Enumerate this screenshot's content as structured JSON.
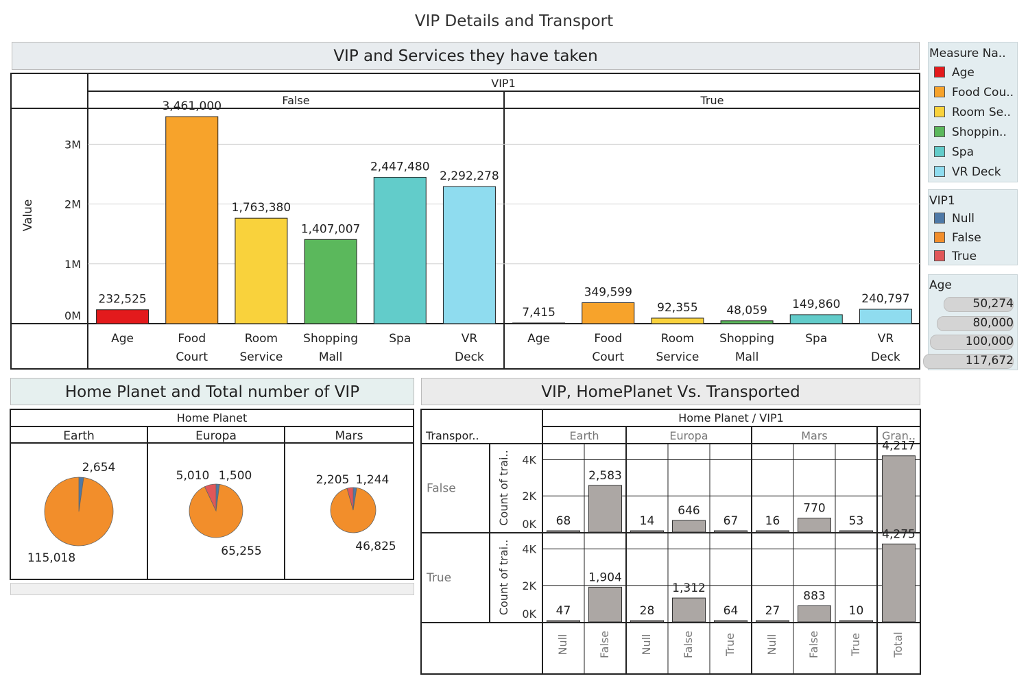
{
  "dashboard": {
    "title": "VIP Details and Transport"
  },
  "services_chart": {
    "title": "VIP and Services they have taken",
    "column_header": "VIP1",
    "y_axis_label": "Value",
    "y_ticks": [
      "0M",
      "1M",
      "2M",
      "3M"
    ]
  },
  "planet_chart": {
    "title": "Home Planet and Total number of VIP",
    "column_header": "Home Planet"
  },
  "transport_chart": {
    "title": "VIP, HomePlanet Vs. Transported",
    "column_header": "Home Planet  /  VIP1",
    "row_header": "Transpor..",
    "row_axis_label": "Count of trai..",
    "y_ticks": [
      "0K",
      "2K",
      "4K"
    ]
  },
  "legends": {
    "measure": {
      "title": "Measure Na..",
      "items": [
        {
          "label": "Age",
          "color": "#e31a1c"
        },
        {
          "label": "Food Cou..",
          "color": "#f7a32b"
        },
        {
          "label": "Room Se..",
          "color": "#f9d23c"
        },
        {
          "label": "Shoppin..",
          "color": "#5bb85c"
        },
        {
          "label": "Spa",
          "color": "#62ccca"
        },
        {
          "label": "VR Deck",
          "color": "#8fdcef"
        }
      ]
    },
    "vip": {
      "title": "VIP1",
      "items": [
        {
          "label": "Null",
          "color": "#4e79a7"
        },
        {
          "label": "False",
          "color": "#f28e2b"
        },
        {
          "label": "True",
          "color": "#e15759"
        }
      ]
    },
    "age": {
      "title": "Age",
      "items": [
        {
          "label": "50,274"
        },
        {
          "label": "80,000"
        },
        {
          "label": "100,000"
        },
        {
          "label": "117,672"
        }
      ]
    }
  },
  "chart_data": [
    {
      "type": "bar",
      "title": "VIP and Services they have taken",
      "facet": "VIP1",
      "ylabel": "Value",
      "ylim": [
        0,
        3600000
      ],
      "panels": [
        {
          "label": "False",
          "bars": [
            {
              "category": "Age",
              "value": 232525,
              "label": "232,525"
            },
            {
              "category": "Food Court",
              "value": 3461000,
              "label": "3,461,000"
            },
            {
              "category": "Room Service",
              "value": 1763380,
              "label": "1,763,380"
            },
            {
              "category": "Shopping Mall",
              "value": 1407007,
              "label": "1,407,007"
            },
            {
              "category": "Spa",
              "value": 2447480,
              "label": "2,447,480"
            },
            {
              "category": "VR Deck",
              "value": 2292278,
              "label": "2,292,278"
            }
          ]
        },
        {
          "label": "True",
          "bars": [
            {
              "category": "Age",
              "value": 7415,
              "label": "7,415"
            },
            {
              "category": "Food Court",
              "value": 349599,
              "label": "349,599"
            },
            {
              "category": "Room Service",
              "value": 92355,
              "label": "92,355"
            },
            {
              "category": "Shopping Mall",
              "value": 48059,
              "label": "48,059"
            },
            {
              "category": "Spa",
              "value": 149860,
              "label": "149,860"
            },
            {
              "category": "VR Deck",
              "value": 240797,
              "label": "240,797"
            }
          ]
        }
      ]
    },
    {
      "type": "pie",
      "title": "Home Planet and Total number of VIP",
      "facet": "Home Planet",
      "pies": [
        {
          "label": "Earth",
          "slices": [
            {
              "name": "Null",
              "value": 2654,
              "label": "2,654"
            },
            {
              "name": "False",
              "value": 115018,
              "label": "115,018"
            }
          ]
        },
        {
          "label": "Europa",
          "slices": [
            {
              "name": "Null",
              "value": 1500,
              "label": "1,500"
            },
            {
              "name": "False",
              "value": 65255,
              "label": "65,255"
            },
            {
              "name": "True",
              "value": 5010,
              "label": "5,010"
            }
          ]
        },
        {
          "label": "Mars",
          "slices": [
            {
              "name": "Null",
              "value": 1244,
              "label": "1,244"
            },
            {
              "name": "False",
              "value": 46825,
              "label": "46,825"
            },
            {
              "name": "True",
              "value": 2205,
              "label": "2,205"
            }
          ]
        }
      ]
    },
    {
      "type": "bar",
      "title": "VIP, HomePlanet Vs. Transported",
      "ylim": [
        0,
        4700
      ],
      "groups": [
        {
          "label": "Earth",
          "columns": [
            "Null",
            "False"
          ]
        },
        {
          "label": "Europa",
          "columns": [
            "Null",
            "False",
            "True"
          ]
        },
        {
          "label": "Mars",
          "columns": [
            "Null",
            "False",
            "True"
          ]
        },
        {
          "label": "Gran..",
          "columns": [
            "Total"
          ]
        }
      ],
      "rows": [
        {
          "label": "False",
          "values": [
            68,
            2583,
            14,
            646,
            67,
            16,
            770,
            53,
            4217
          ],
          "labels": [
            "68",
            "2,583",
            "14",
            "646",
            "67",
            "16",
            "770",
            "53",
            "4,217"
          ]
        },
        {
          "label": "True",
          "values": [
            47,
            1904,
            28,
            1312,
            64,
            27,
            883,
            10,
            4275
          ],
          "labels": [
            "47",
            "1,904",
            "28",
            "1,312",
            "64",
            "27",
            "883",
            "10",
            "4,275"
          ]
        }
      ]
    }
  ]
}
